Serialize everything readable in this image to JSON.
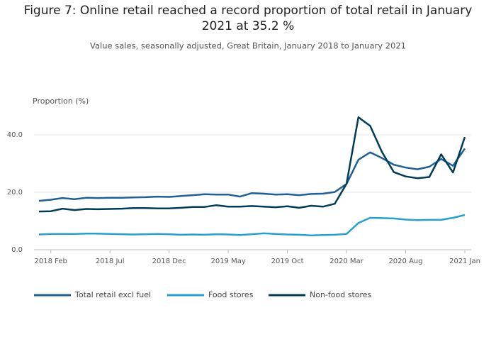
{
  "chart_data": {
    "type": "line",
    "title": "Figure 7: Online retail reached a record proportion of total retail in January 2021 at 35.2 %",
    "subtitle": "Value sales, seasonally adjusted, Great Britain, January 2018 to January 2021",
    "y_label": "Proportion (%)",
    "categories": [
      null,
      "2018 Feb",
      null,
      null,
      null,
      null,
      "2018 Jul",
      null,
      null,
      null,
      null,
      "2018 Dec",
      null,
      null,
      null,
      null,
      "2019 May",
      null,
      null,
      null,
      null,
      "2019 Oct",
      null,
      null,
      null,
      null,
      "2020 Mar",
      null,
      null,
      null,
      null,
      "2020 Aug",
      null,
      null,
      null,
      null,
      "2021 Jan"
    ],
    "ylim": [
      0,
      47
    ],
    "yticks": [
      {
        "value": 0,
        "label": "0.0"
      },
      {
        "value": 20,
        "label": "20.0"
      },
      {
        "value": 40,
        "label": "40.0"
      }
    ],
    "grid": true,
    "legend": "bottom-left",
    "series": [
      {
        "name": "Total retail excl fuel",
        "color": "#206095",
        "values": [
          17.0,
          17.4,
          18.0,
          17.6,
          18.1,
          18.0,
          18.1,
          18.1,
          18.2,
          18.3,
          18.5,
          18.4,
          18.7,
          19.0,
          19.3,
          19.2,
          19.2,
          18.5,
          19.7,
          19.5,
          19.2,
          19.3,
          19.0,
          19.4,
          19.5,
          20.1,
          22.9,
          31.3,
          33.9,
          31.9,
          29.6,
          28.6,
          28.0,
          28.9,
          31.6,
          29.2,
          35.2
        ]
      },
      {
        "name": "Food stores",
        "color": "#27a0cc",
        "values": [
          5.3,
          5.5,
          5.5,
          5.5,
          5.6,
          5.6,
          5.5,
          5.4,
          5.3,
          5.4,
          5.5,
          5.4,
          5.2,
          5.3,
          5.2,
          5.4,
          5.3,
          5.1,
          5.4,
          5.7,
          5.5,
          5.3,
          5.2,
          5.0,
          5.1,
          5.2,
          5.5,
          9.3,
          11.1,
          11.0,
          10.9,
          10.5,
          10.3,
          10.4,
          10.4,
          11.1,
          12.1
        ]
      },
      {
        "name": "Non-food stores",
        "color": "#003c57",
        "values": [
          13.3,
          13.4,
          14.3,
          13.8,
          14.2,
          14.1,
          14.2,
          14.3,
          14.5,
          14.5,
          14.4,
          14.4,
          14.6,
          14.9,
          14.9,
          15.5,
          15.0,
          15.0,
          15.2,
          15.0,
          14.8,
          15.1,
          14.6,
          15.3,
          15.0,
          16.0,
          23.0,
          46.1,
          43.1,
          34.0,
          27.0,
          25.5,
          24.9,
          25.3,
          33.2,
          26.9,
          39.2
        ]
      }
    ]
  }
}
